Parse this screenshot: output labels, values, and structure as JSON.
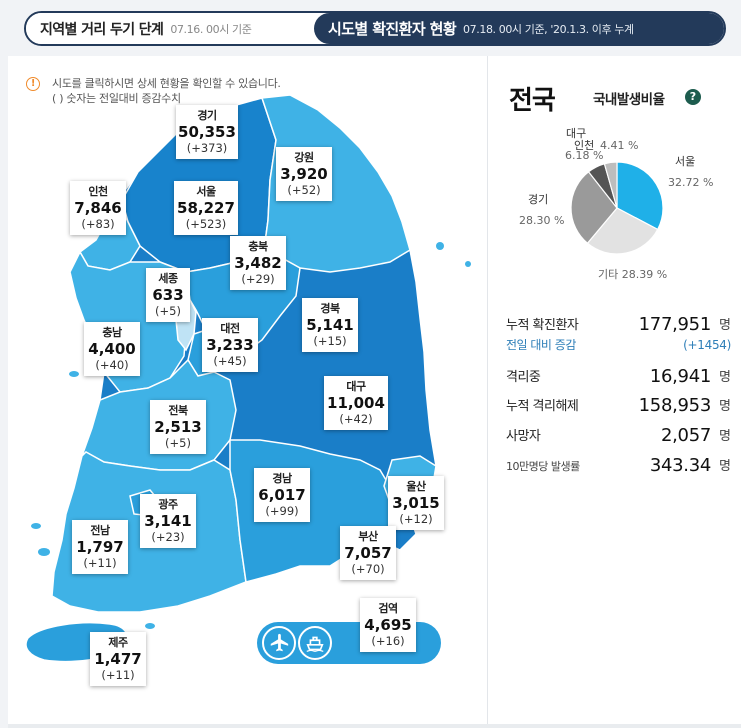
{
  "tabs": {
    "distancing": {
      "title": "지역별 거리 두기 단계",
      "sub": "07.16. 00시 기준"
    },
    "cases": {
      "title": "시도별 확진환자 현황",
      "sub": "07.18. 00시 기준, '20.1.3. 이후 누계"
    }
  },
  "notice": {
    "icon": "info-icon",
    "line1": "시도를 클릭하시면 상세 현황을 확인할 수 있습니다.",
    "line2": "( ) 숫자는 전일대비 증감수치"
  },
  "regions": {
    "gyeonggi": {
      "name": "경기",
      "value": "50,353",
      "delta": "(+373)"
    },
    "gangwon": {
      "name": "강원",
      "value": "3,920",
      "delta": "(+52)"
    },
    "incheon": {
      "name": "인천",
      "value": "7,846",
      "delta": "(+83)"
    },
    "seoul": {
      "name": "서울",
      "value": "58,227",
      "delta": "(+523)"
    },
    "chungbuk": {
      "name": "충북",
      "value": "3,482",
      "delta": "(+29)"
    },
    "sejong": {
      "name": "세종",
      "value": "633",
      "delta": "(+5)"
    },
    "chungnam": {
      "name": "충남",
      "value": "4,400",
      "delta": "(+40)"
    },
    "daejeon": {
      "name": "대전",
      "value": "3,233",
      "delta": "(+45)"
    },
    "gyeongbuk": {
      "name": "경북",
      "value": "5,141",
      "delta": "(+15)"
    },
    "daegu": {
      "name": "대구",
      "value": "11,004",
      "delta": "(+42)"
    },
    "jeonbuk": {
      "name": "전북",
      "value": "2,513",
      "delta": "(+5)"
    },
    "gyeongnam": {
      "name": "경남",
      "value": "6,017",
      "delta": "(+99)"
    },
    "ulsan": {
      "name": "울산",
      "value": "3,015",
      "delta": "(+12)"
    },
    "gwangju": {
      "name": "광주",
      "value": "3,141",
      "delta": "(+23)"
    },
    "jeonnam": {
      "name": "전남",
      "value": "1,797",
      "delta": "(+11)"
    },
    "busan": {
      "name": "부산",
      "value": "7,057",
      "delta": "(+70)"
    },
    "quarantine": {
      "name": "검역",
      "value": "4,695",
      "delta": "(+16)"
    },
    "jeju": {
      "name": "제주",
      "value": "1,477",
      "delta": "(+11)"
    }
  },
  "island_buttons": {
    "airport": "airplane-icon",
    "port": "ship-icon"
  },
  "national": {
    "title": "전국",
    "ratio_title": "국내발생비율",
    "help_icon": "?"
  },
  "pie": {
    "slices": [
      {
        "name": "서울",
        "pct": 32.72,
        "label": "32.72 %",
        "color": "#1fb0e8"
      },
      {
        "name": "기타",
        "pct": 28.39,
        "label": "기타 28.39 %",
        "color": "#e2e2e2"
      },
      {
        "name": "경기",
        "pct": 28.3,
        "label": "28.30 %",
        "color": "#9a9a9a"
      },
      {
        "name": "대구",
        "pct": 6.18,
        "label": "6.18 %",
        "color": "#555555"
      },
      {
        "name": "인천",
        "pct": 4.41,
        "label": "4.41 %",
        "color": "#bdbdbd"
      }
    ]
  },
  "stats": [
    {
      "label": "누적 확진환자",
      "value": "177,951",
      "unit": "명"
    },
    {
      "label": "전일 대비 증감",
      "value": "(+1454)",
      "unit": ""
    },
    {
      "label": "격리중",
      "value": "16,941",
      "unit": "명"
    },
    {
      "label": "누적 격리해제",
      "value": "158,953",
      "unit": "명"
    },
    {
      "label": "사망자",
      "value": "2,057",
      "unit": "명"
    },
    {
      "label": "10만명당 발생률",
      "value": "343.34",
      "unit": "명"
    }
  ],
  "colors": {
    "tab_active": "#233a5a",
    "map_dark": "#1a7ec8",
    "map_mid": "#2a9fdc",
    "map_light": "#3fb2e6",
    "sejong": "#bfe3f5",
    "notice": "#f08b2c"
  }
}
